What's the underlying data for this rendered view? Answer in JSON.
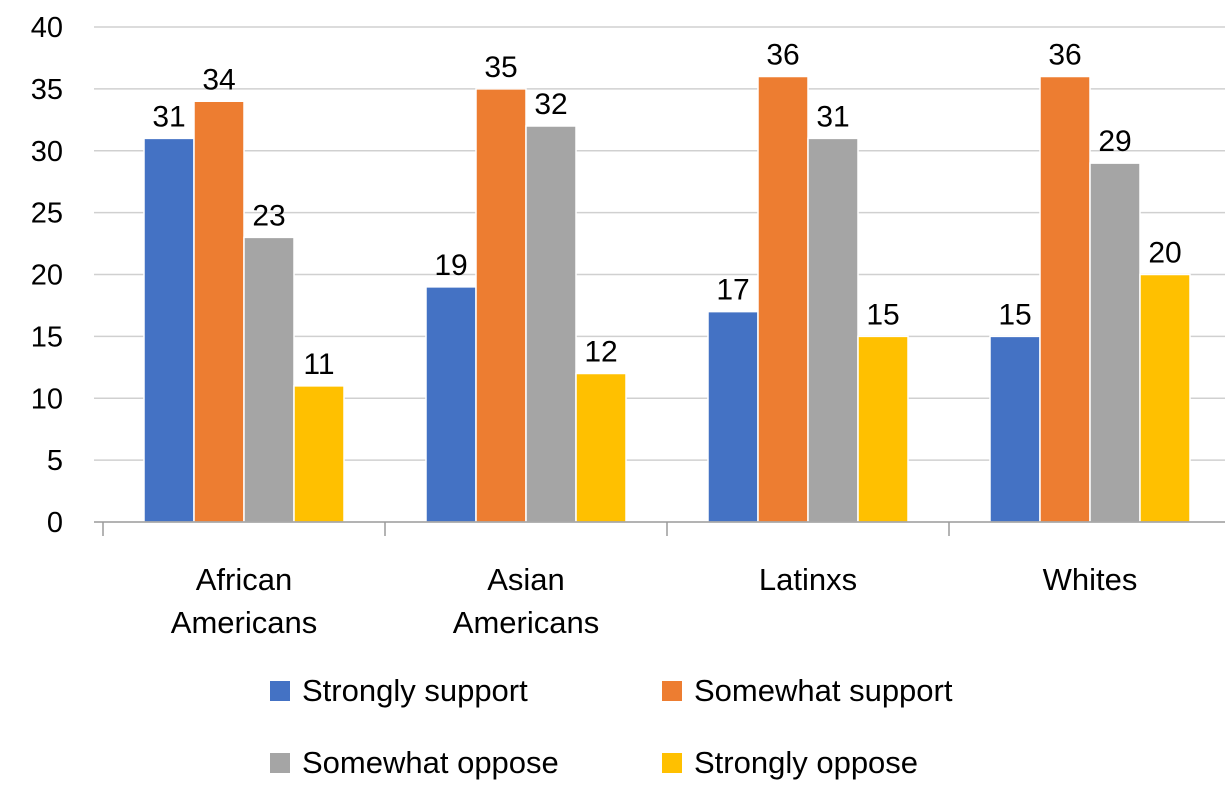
{
  "chart_data": {
    "type": "bar",
    "categories": [
      [
        "African",
        "Americans"
      ],
      [
        "Asian",
        "Americans"
      ],
      [
        "Latinxs"
      ],
      [
        "Whites"
      ]
    ],
    "series": [
      {
        "name": "Strongly support",
        "color": "#4472C4",
        "values": [
          31,
          19,
          17,
          15
        ]
      },
      {
        "name": "Somewhat support",
        "color": "#ED7D31",
        "values": [
          34,
          35,
          36,
          36
        ]
      },
      {
        "name": "Somewhat oppose",
        "color": "#A5A5A5",
        "values": [
          23,
          32,
          31,
          29
        ]
      },
      {
        "name": "Strongly oppose",
        "color": "#FFC000",
        "values": [
          11,
          12,
          15,
          20
        ]
      }
    ],
    "ylim": [
      0,
      40
    ],
    "ytick_step": 5,
    "yticks": [
      "0",
      "5",
      "10",
      "15",
      "20",
      "25",
      "30",
      "35",
      "40"
    ],
    "grid": true,
    "legend_position": "bottom",
    "title": "",
    "xlabel": "",
    "ylabel": ""
  }
}
